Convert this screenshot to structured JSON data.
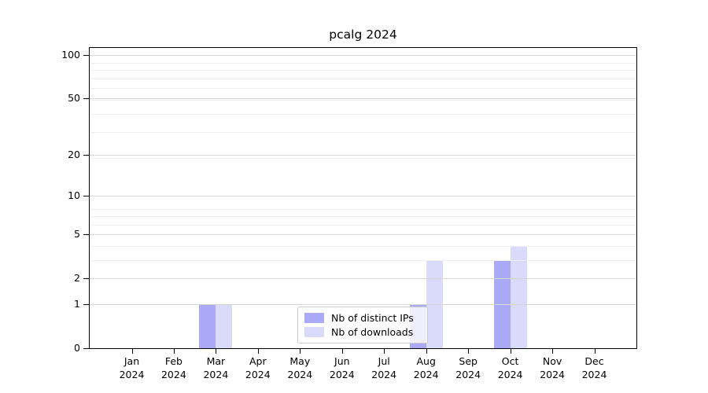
{
  "chart_data": {
    "type": "bar",
    "title": "pcalg 2024",
    "categories": [
      "Jan",
      "Feb",
      "Mar",
      "Apr",
      "May",
      "Jun",
      "Jul",
      "Aug",
      "Sep",
      "Oct",
      "Nov",
      "Dec"
    ],
    "x_tick_year": "2024",
    "series": [
      {
        "name": "Nb of distinct IPs",
        "color": "#aaaaf8",
        "values": [
          0,
          0,
          1,
          0,
          0,
          0,
          0,
          1,
          0,
          3,
          0,
          0
        ]
      },
      {
        "name": "Nb of downloads",
        "color": "#dadafa",
        "values": [
          0,
          0,
          1,
          0,
          0,
          0,
          0,
          3,
          0,
          4,
          0,
          0
        ]
      }
    ],
    "xlabel": "",
    "ylabel": "",
    "y_axis": {
      "scale": "log10(1+v)",
      "tick_values": [
        0,
        1,
        2,
        5,
        10,
        20,
        50,
        100
      ],
      "tick_labels": [
        "0",
        "1",
        "2",
        "5",
        "10",
        "20",
        "50",
        "100"
      ],
      "minor_grid_values": [
        3,
        4,
        6,
        7,
        8,
        19,
        29,
        39,
        49,
        59,
        69,
        79,
        89
      ],
      "ylim": [
        0,
        113
      ]
    },
    "grid": true,
    "legend_position": "inside-bottom-center"
  },
  "colors": {
    "spine": "#000000",
    "grid_major": "#d6d6d6",
    "grid_minor": "#eeeeee",
    "text": "#000000",
    "legend_border": "#cccccc",
    "legend_bg": "rgba(255,255,255,0.8)"
  }
}
